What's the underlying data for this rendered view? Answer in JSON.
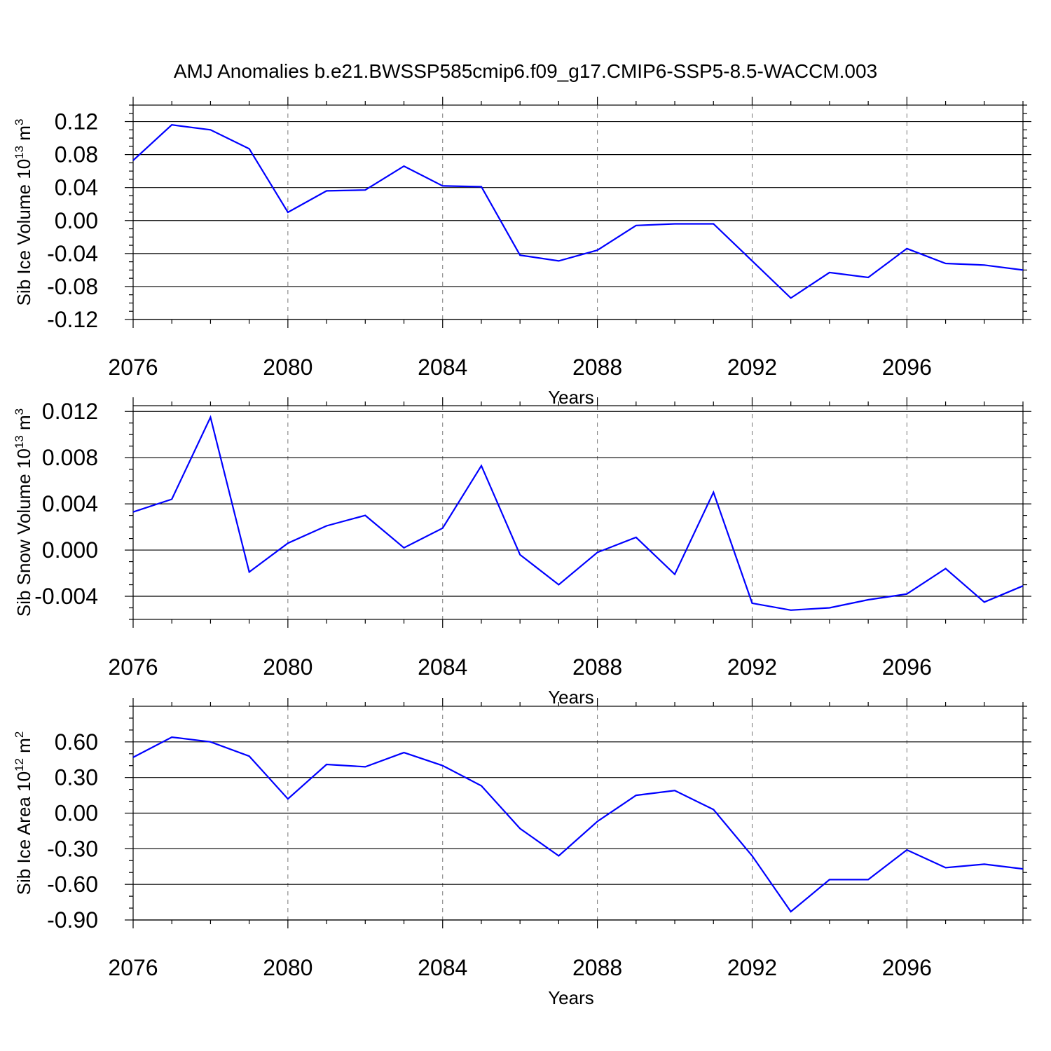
{
  "figure_title": "AMJ Anomalies b.e21.BWSSP585cmip6.f09_g17.CMIP6-SSP5-8.5-WACCM.003",
  "colors": {
    "series": "#0000ff",
    "axes": "#000000",
    "grid": "#777777"
  },
  "chart_data": [
    {
      "type": "line",
      "id": "ice-volume",
      "ylabel": "Sib Ice Volume 10",
      "ylabel_exp": "13",
      "ylabel_unit": " m",
      "ylabel_unit_exp": "3",
      "xlabel": "Years",
      "xlim": [
        2076,
        2099
      ],
      "ylim": [
        -0.12,
        0.14
      ],
      "xticks": [
        2076,
        2080,
        2084,
        2088,
        2092,
        2096
      ],
      "xtick_labels": [
        "2076",
        "2080",
        "2084",
        "2088",
        "2092",
        "2096"
      ],
      "yticks": [
        -0.12,
        -0.08,
        -0.04,
        0.0,
        0.04,
        0.08,
        0.12
      ],
      "ytick_labels": [
        "-0.12",
        "-0.08",
        "-0.04",
        "0.00",
        "0.04",
        "0.08",
        "0.12"
      ],
      "yminor_step": 0.01,
      "grid_x": true,
      "x": [
        2076,
        2077,
        2078,
        2079,
        2080,
        2081,
        2082,
        2083,
        2084,
        2085,
        2086,
        2087,
        2088,
        2089,
        2090,
        2091,
        2092,
        2093,
        2094,
        2095,
        2096,
        2097,
        2098,
        2099
      ],
      "values": [
        0.073,
        0.116,
        0.11,
        0.087,
        0.01,
        0.036,
        0.037,
        0.066,
        0.042,
        0.041,
        -0.042,
        -0.049,
        -0.036,
        -0.006,
        -0.004,
        -0.004,
        -0.049,
        -0.094,
        -0.063,
        -0.069,
        -0.034,
        -0.052,
        -0.054,
        -0.06
      ]
    },
    {
      "type": "line",
      "id": "snow-volume",
      "ylabel": "Sib Snow Volume 10",
      "ylabel_exp": "13",
      "ylabel_unit": " m",
      "ylabel_unit_exp": "3",
      "xlabel": "Years",
      "xlim": [
        2076,
        2099
      ],
      "ylim": [
        -0.006,
        0.0125
      ],
      "xticks": [
        2076,
        2080,
        2084,
        2088,
        2092,
        2096
      ],
      "xtick_labels": [
        "2076",
        "2080",
        "2084",
        "2088",
        "2092",
        "2096"
      ],
      "yticks": [
        -0.004,
        0.0,
        0.004,
        0.008,
        0.012
      ],
      "ytick_labels": [
        "-0.004",
        "0.000",
        "0.004",
        "0.008",
        "0.012"
      ],
      "yminor_step": 0.001,
      "grid_x": true,
      "x": [
        2076,
        2077,
        2078,
        2079,
        2080,
        2081,
        2082,
        2083,
        2084,
        2085,
        2086,
        2087,
        2088,
        2089,
        2090,
        2091,
        2092,
        2093,
        2094,
        2095,
        2096,
        2097,
        2098,
        2099
      ],
      "values": [
        0.0033,
        0.0044,
        0.0115,
        -0.0019,
        0.0006,
        0.0021,
        0.003,
        0.0002,
        0.0019,
        0.0073,
        -0.0004,
        -0.003,
        -0.0002,
        0.0011,
        -0.0021,
        0.005,
        -0.0046,
        -0.0052,
        -0.005,
        -0.0043,
        -0.0038,
        -0.0016,
        -0.0045,
        -0.0031
      ]
    },
    {
      "type": "line",
      "id": "ice-area",
      "ylabel": "Sib Ice Area 10",
      "ylabel_exp": "12",
      "ylabel_unit": " m",
      "ylabel_unit_exp": "2",
      "xlabel": "Years",
      "xlim": [
        2076,
        2099
      ],
      "ylim": [
        -0.9,
        0.9
      ],
      "xticks": [
        2076,
        2080,
        2084,
        2088,
        2092,
        2096
      ],
      "xtick_labels": [
        "2076",
        "2080",
        "2084",
        "2088",
        "2092",
        "2096"
      ],
      "yticks": [
        -0.9,
        -0.6,
        -0.3,
        0.0,
        0.3,
        0.6
      ],
      "ytick_labels": [
        "-0.90",
        "-0.60",
        "-0.30",
        "0.00",
        "0.30",
        "0.60"
      ],
      "yminor_step": 0.1,
      "grid_x": true,
      "x": [
        2076,
        2077,
        2078,
        2079,
        2080,
        2081,
        2082,
        2083,
        2084,
        2085,
        2086,
        2087,
        2088,
        2089,
        2090,
        2091,
        2092,
        2093,
        2094,
        2095,
        2096,
        2097,
        2098,
        2099
      ],
      "values": [
        0.47,
        0.64,
        0.6,
        0.48,
        0.12,
        0.41,
        0.39,
        0.51,
        0.4,
        0.23,
        -0.13,
        -0.36,
        -0.07,
        0.15,
        0.19,
        0.03,
        -0.36,
        -0.83,
        -0.56,
        -0.56,
        -0.31,
        -0.46,
        -0.43,
        -0.47
      ]
    }
  ]
}
